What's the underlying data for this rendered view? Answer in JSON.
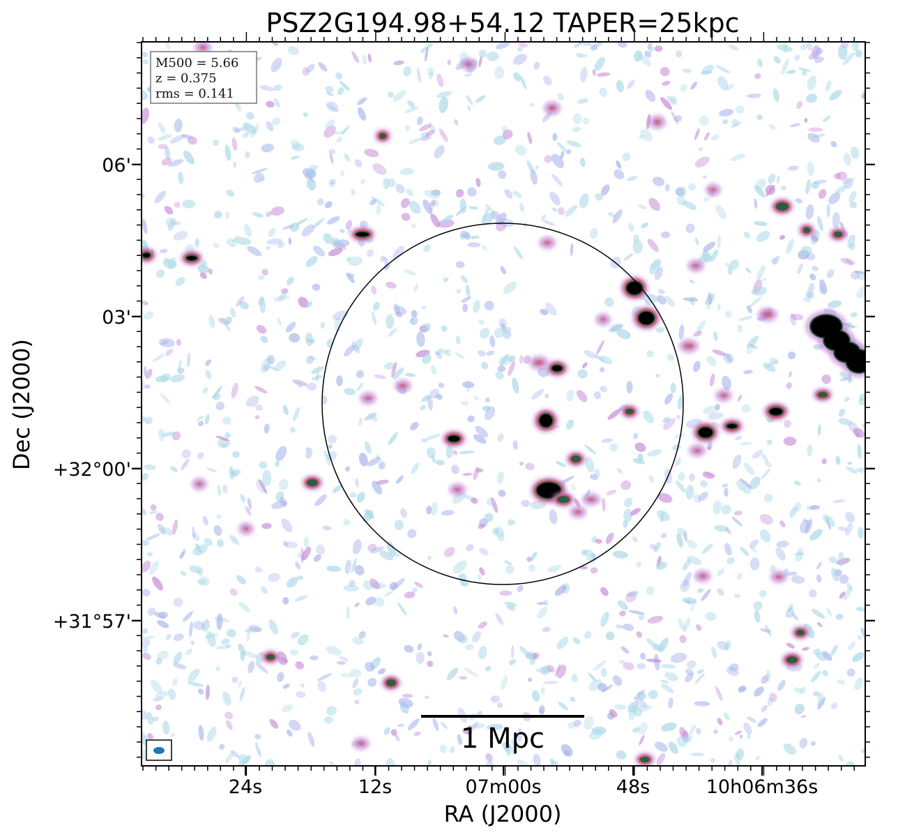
{
  "title": "PSZ2G194.98+54.12 TAPER=25kpc",
  "xlabel": "RA (J2000)",
  "ylabel": "Dec (J2000)",
  "info": {
    "m500": "M500 = 5.66",
    "z": "z = 0.375",
    "rms": "rms = 0.141"
  },
  "ra_ticks": [
    "24s",
    "12s",
    "07m00s",
    "48s",
    "10h06m36s"
  ],
  "dec_ticks": [
    "06'",
    "03'",
    "+32°00'",
    "+31°57'"
  ],
  "scalebar_label": "1 Mpc",
  "colors": {
    "noise_light": "#a9d7e6",
    "noise_mid": "#a8b4ea",
    "noise_purple": "#c48ad6",
    "source_red": "#c4505a",
    "source_green": "#2f5a45",
    "source_core": "#000000",
    "beam": "#1f77b4"
  }
}
